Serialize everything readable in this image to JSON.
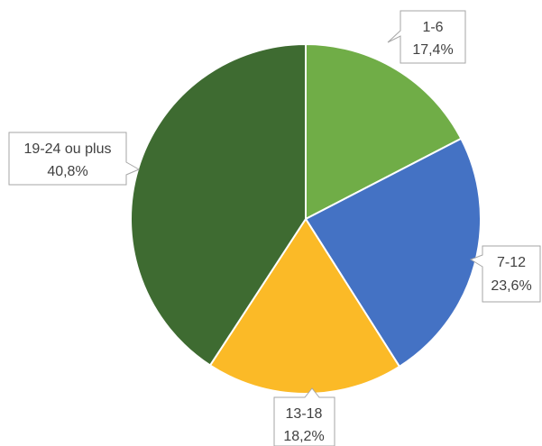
{
  "chart_data": {
    "type": "pie",
    "slices": [
      {
        "label": "1-6",
        "value": 17.4,
        "value_label": "17,4%",
        "color": "#70AD47"
      },
      {
        "label": "7-12",
        "value": 23.6,
        "value_label": "23,6%",
        "color": "#4472C4"
      },
      {
        "label": "13-18",
        "value": 18.2,
        "value_label": "18,2%",
        "color": "#FBBA27"
      },
      {
        "label": "19-24 ou plus",
        "value": 40.8,
        "value_label": "40,8%",
        "color": "#3E6B31"
      }
    ],
    "start": "top, clockwise",
    "legend": "none",
    "data_labels": "callouts outside slices"
  }
}
